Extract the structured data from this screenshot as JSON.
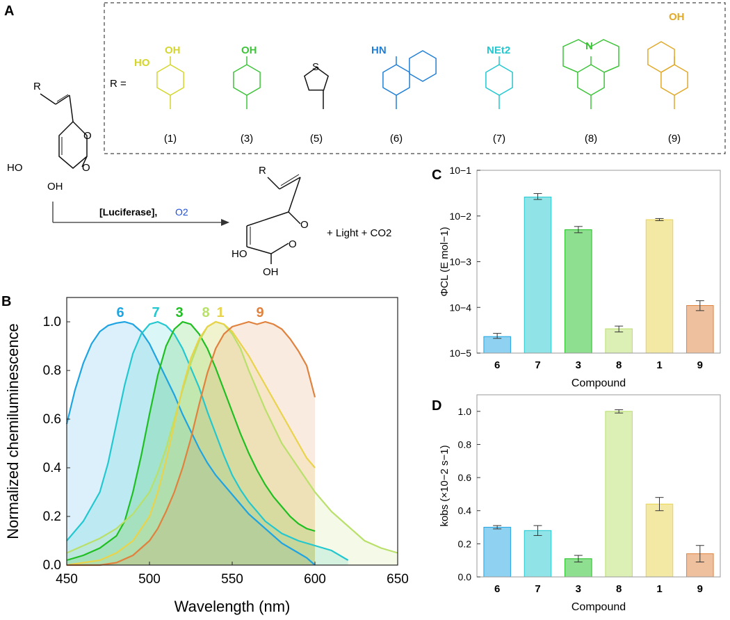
{
  "panel_labels": {
    "a": "A",
    "b": "B",
    "c": "C",
    "d": "D"
  },
  "scheme": {
    "r_label": "R",
    "r_equals": "R =",
    "ho": "HO",
    "oh": "OH",
    "o": "O",
    "reagent_bracket": "[Luciferase],",
    "reagent_o2": "O2",
    "product_side": "+ Light + CO2",
    "substituents": [
      {
        "id": "1",
        "label": "(1)",
        "color": "#d4d62e",
        "text_top": "OH",
        "text_left": "HO"
      },
      {
        "id": "3",
        "label": "(3)",
        "color": "#3ec43a",
        "text_top": "OH"
      },
      {
        "id": "5",
        "label": "(5)",
        "color": "#111111",
        "text_top": "S"
      },
      {
        "id": "6",
        "label": "(6)",
        "color": "#1f7fd6",
        "text_top": "HN"
      },
      {
        "id": "7",
        "label": "(7)",
        "color": "#22c7cf",
        "text_top": "NEt2"
      },
      {
        "id": "8",
        "label": "(8)",
        "color": "#3ec43a",
        "text_top": "N"
      },
      {
        "id": "9",
        "label": "(9)",
        "color": "#e0a92a",
        "text_top": "OH"
      }
    ]
  },
  "colors": {
    "6": "#1fa4e2",
    "7": "#22c7cf",
    "3": "#1fbf22",
    "8": "#b9e06a",
    "1": "#e9d34a",
    "9": "#e0823d"
  },
  "chart_data": [
    {
      "type": "area",
      "panel": "B",
      "xlabel": "Wavelength (nm)",
      "ylabel": "Normalized chemiluminescence",
      "xlim": [
        450,
        650
      ],
      "ylim": [
        0,
        1.1
      ],
      "xticks": [
        450,
        500,
        550,
        600,
        650
      ],
      "yticks": [
        0.0,
        0.2,
        0.4,
        0.6,
        0.8,
        1.0
      ],
      "series": [
        {
          "name": "6",
          "color": "#1fa4e2",
          "x": [
            450,
            455,
            460,
            465,
            470,
            475,
            480,
            485,
            490,
            495,
            500,
            505,
            510,
            515,
            520,
            525,
            530,
            535,
            540,
            545,
            550,
            555,
            560,
            565,
            570,
            575,
            580,
            585,
            590,
            595,
            600
          ],
          "y": [
            0.58,
            0.72,
            0.83,
            0.91,
            0.96,
            0.985,
            0.995,
            1.0,
            0.99,
            0.96,
            0.91,
            0.84,
            0.77,
            0.7,
            0.62,
            0.55,
            0.48,
            0.42,
            0.37,
            0.33,
            0.29,
            0.25,
            0.21,
            0.18,
            0.15,
            0.12,
            0.09,
            0.07,
            0.05,
            0.03,
            0.0
          ]
        },
        {
          "name": "7",
          "color": "#22c7cf",
          "x": [
            450,
            460,
            470,
            475,
            480,
            485,
            490,
            495,
            500,
            505,
            510,
            515,
            520,
            525,
            530,
            535,
            540,
            545,
            550,
            555,
            560,
            570,
            580,
            590,
            600,
            610,
            620
          ],
          "y": [
            0.1,
            0.18,
            0.3,
            0.42,
            0.58,
            0.74,
            0.87,
            0.95,
            0.99,
            1.0,
            0.985,
            0.95,
            0.89,
            0.81,
            0.73,
            0.63,
            0.54,
            0.45,
            0.37,
            0.31,
            0.26,
            0.18,
            0.13,
            0.1,
            0.08,
            0.06,
            0.02
          ]
        },
        {
          "name": "3",
          "color": "#1fbf22",
          "x": [
            450,
            460,
            470,
            480,
            485,
            490,
            495,
            500,
            505,
            510,
            515,
            520,
            525,
            530,
            535,
            540,
            545,
            550,
            555,
            560,
            565,
            570,
            575,
            580,
            585,
            590,
            595,
            600
          ],
          "y": [
            0.02,
            0.04,
            0.07,
            0.12,
            0.18,
            0.3,
            0.45,
            0.62,
            0.78,
            0.9,
            0.97,
            1.0,
            0.99,
            0.95,
            0.89,
            0.81,
            0.72,
            0.63,
            0.54,
            0.46,
            0.39,
            0.33,
            0.28,
            0.24,
            0.2,
            0.17,
            0.15,
            0.14
          ]
        },
        {
          "name": "8",
          "color": "#b9e06a",
          "x": [
            450,
            460,
            470,
            480,
            490,
            500,
            505,
            510,
            515,
            520,
            525,
            530,
            535,
            540,
            545,
            550,
            555,
            560,
            565,
            570,
            575,
            580,
            590,
            600,
            610,
            620,
            630,
            640,
            650
          ],
          "y": [
            0.05,
            0.08,
            0.11,
            0.15,
            0.21,
            0.3,
            0.38,
            0.48,
            0.6,
            0.72,
            0.83,
            0.92,
            0.98,
            1.0,
            0.99,
            0.95,
            0.89,
            0.8,
            0.72,
            0.64,
            0.57,
            0.5,
            0.4,
            0.3,
            0.22,
            0.16,
            0.1,
            0.07,
            0.05
          ]
        },
        {
          "name": "1",
          "color": "#e9d34a",
          "x": [
            450,
            460,
            470,
            480,
            490,
            500,
            505,
            510,
            515,
            520,
            525,
            530,
            535,
            540,
            545,
            550,
            555,
            560,
            565,
            570,
            575,
            580,
            585,
            590,
            595,
            600
          ],
          "y": [
            0.0,
            0.01,
            0.02,
            0.05,
            0.1,
            0.2,
            0.3,
            0.43,
            0.58,
            0.73,
            0.85,
            0.93,
            0.98,
            1.0,
            0.99,
            0.96,
            0.91,
            0.86,
            0.8,
            0.74,
            0.68,
            0.62,
            0.56,
            0.5,
            0.44,
            0.4
          ]
        },
        {
          "name": "9",
          "color": "#e0823d",
          "x": [
            450,
            460,
            470,
            480,
            490,
            500,
            505,
            510,
            515,
            520,
            525,
            530,
            535,
            540,
            545,
            550,
            555,
            560,
            565,
            570,
            575,
            580,
            585,
            590,
            595,
            600
          ],
          "y": [
            0.0,
            0.0,
            0.0,
            0.01,
            0.04,
            0.1,
            0.15,
            0.22,
            0.3,
            0.4,
            0.52,
            0.66,
            0.79,
            0.89,
            0.95,
            0.98,
            0.99,
            1.0,
            0.99,
            1.0,
            0.99,
            0.97,
            0.93,
            0.88,
            0.82,
            0.69
          ]
        }
      ],
      "annotations": [
        "6",
        "7",
        "3",
        "8",
        "1",
        "9"
      ]
    },
    {
      "type": "bar",
      "panel": "C",
      "scale": "log",
      "xlabel": "Compound",
      "ylabel": "ΦCL (E mol−1)",
      "categories": [
        "6",
        "7",
        "3",
        "8",
        "1",
        "9"
      ],
      "values": [
        2.3e-05,
        0.026,
        0.005,
        3.4e-05,
        0.0083,
        0.00011
      ],
      "errors_low": [
        2.1e-05,
        0.023,
        0.0043,
        2.9e-05,
        0.0079,
        8.5e-05
      ],
      "errors_high": [
        2.7e-05,
        0.031,
        0.0059,
        3.9e-05,
        0.0088,
        0.00014
      ],
      "ylim": [
        1e-05,
        0.1
      ],
      "ytick_labels": [
        "10−5",
        "10−4",
        "10−3",
        "10−2",
        "10−1"
      ]
    },
    {
      "type": "bar",
      "panel": "D",
      "xlabel": "Compound",
      "ylabel": "kobs (×10−2 s−1)",
      "categories": [
        "6",
        "7",
        "3",
        "8",
        "1",
        "9"
      ],
      "values": [
        0.3,
        0.28,
        0.11,
        1.0,
        0.44,
        0.14
      ],
      "errors": [
        0.01,
        0.03,
        0.02,
        0.01,
        0.04,
        0.05
      ],
      "ylim": [
        0,
        1.1
      ],
      "yticks": [
        0.0,
        0.2,
        0.4,
        0.6,
        0.8,
        1.0
      ]
    }
  ]
}
